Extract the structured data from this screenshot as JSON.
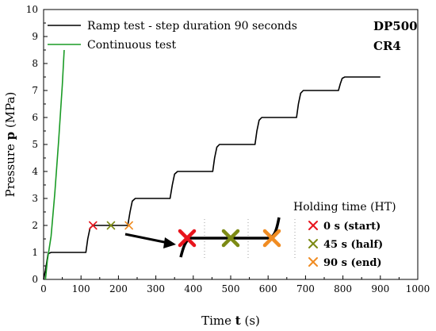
{
  "chart_data": {
    "type": "line",
    "xlabel_prefix": "Time ",
    "xlabel_symbol": "t",
    "xlabel_unit": " (s)",
    "ylabel_prefix": "Pressure ",
    "ylabel_symbol": "p",
    "ylabel_unit": " (MPa)",
    "xlim": [
      0,
      1000
    ],
    "ylim": [
      0,
      10
    ],
    "xticks": [
      0,
      100,
      200,
      300,
      400,
      500,
      600,
      700,
      800,
      900,
      1000
    ],
    "yticks": [
      0,
      1,
      2,
      3,
      4,
      5,
      6,
      7,
      8,
      9,
      10
    ],
    "grid": false,
    "legend_position": "top-left",
    "annotations": [
      "DP500",
      "CR4"
    ],
    "series": [
      {
        "name": "Ramp test - step duration 90 seconds",
        "color": "#000000",
        "points": [
          [
            0,
            0
          ],
          [
            5,
            0.35
          ],
          [
            12,
            0.95
          ],
          [
            20,
            1.0
          ],
          [
            113,
            1.0
          ],
          [
            118,
            1.5
          ],
          [
            124,
            1.9
          ],
          [
            132,
            2.0
          ],
          [
            225,
            2.0
          ],
          [
            231,
            2.5
          ],
          [
            237,
            2.9
          ],
          [
            245,
            3.0
          ],
          [
            338,
            3.0
          ],
          [
            344,
            3.5
          ],
          [
            350,
            3.9
          ],
          [
            358,
            4.0
          ],
          [
            452,
            4.0
          ],
          [
            457,
            4.5
          ],
          [
            463,
            4.9
          ],
          [
            470,
            5.0
          ],
          [
            565,
            5.0
          ],
          [
            570,
            5.5
          ],
          [
            576,
            5.9
          ],
          [
            583,
            6.0
          ],
          [
            676,
            6.0
          ],
          [
            681,
            6.5
          ],
          [
            687,
            6.9
          ],
          [
            694,
            7.0
          ],
          [
            788,
            7.0
          ],
          [
            793,
            7.25
          ],
          [
            798,
            7.45
          ],
          [
            805,
            7.5
          ],
          [
            900,
            7.5
          ]
        ]
      },
      {
        "name": "Continuous test",
        "color": "#1a9b25",
        "points": [
          [
            5,
            0
          ],
          [
            10,
            0.7
          ],
          [
            20,
            1.6
          ],
          [
            30,
            3.2
          ],
          [
            40,
            5.1
          ],
          [
            50,
            7.2
          ],
          [
            55,
            8.5
          ]
        ]
      }
    ],
    "markers": [
      {
        "x": 132,
        "y": 2.0,
        "color": "#e8141c"
      },
      {
        "x": 180,
        "y": 2.0,
        "color": "#7c8a14"
      },
      {
        "x": 228,
        "y": 2.0,
        "color": "#f08c22"
      }
    ],
    "holding_time": {
      "title": "Holding time (HT)",
      "items": [
        {
          "label": "0 s (start)",
          "color": "#e8141c"
        },
        {
          "label": "45 s (half)",
          "color": "#7c8a14"
        },
        {
          "label": "90 s (end)",
          "color": "#f08c22"
        }
      ]
    }
  }
}
